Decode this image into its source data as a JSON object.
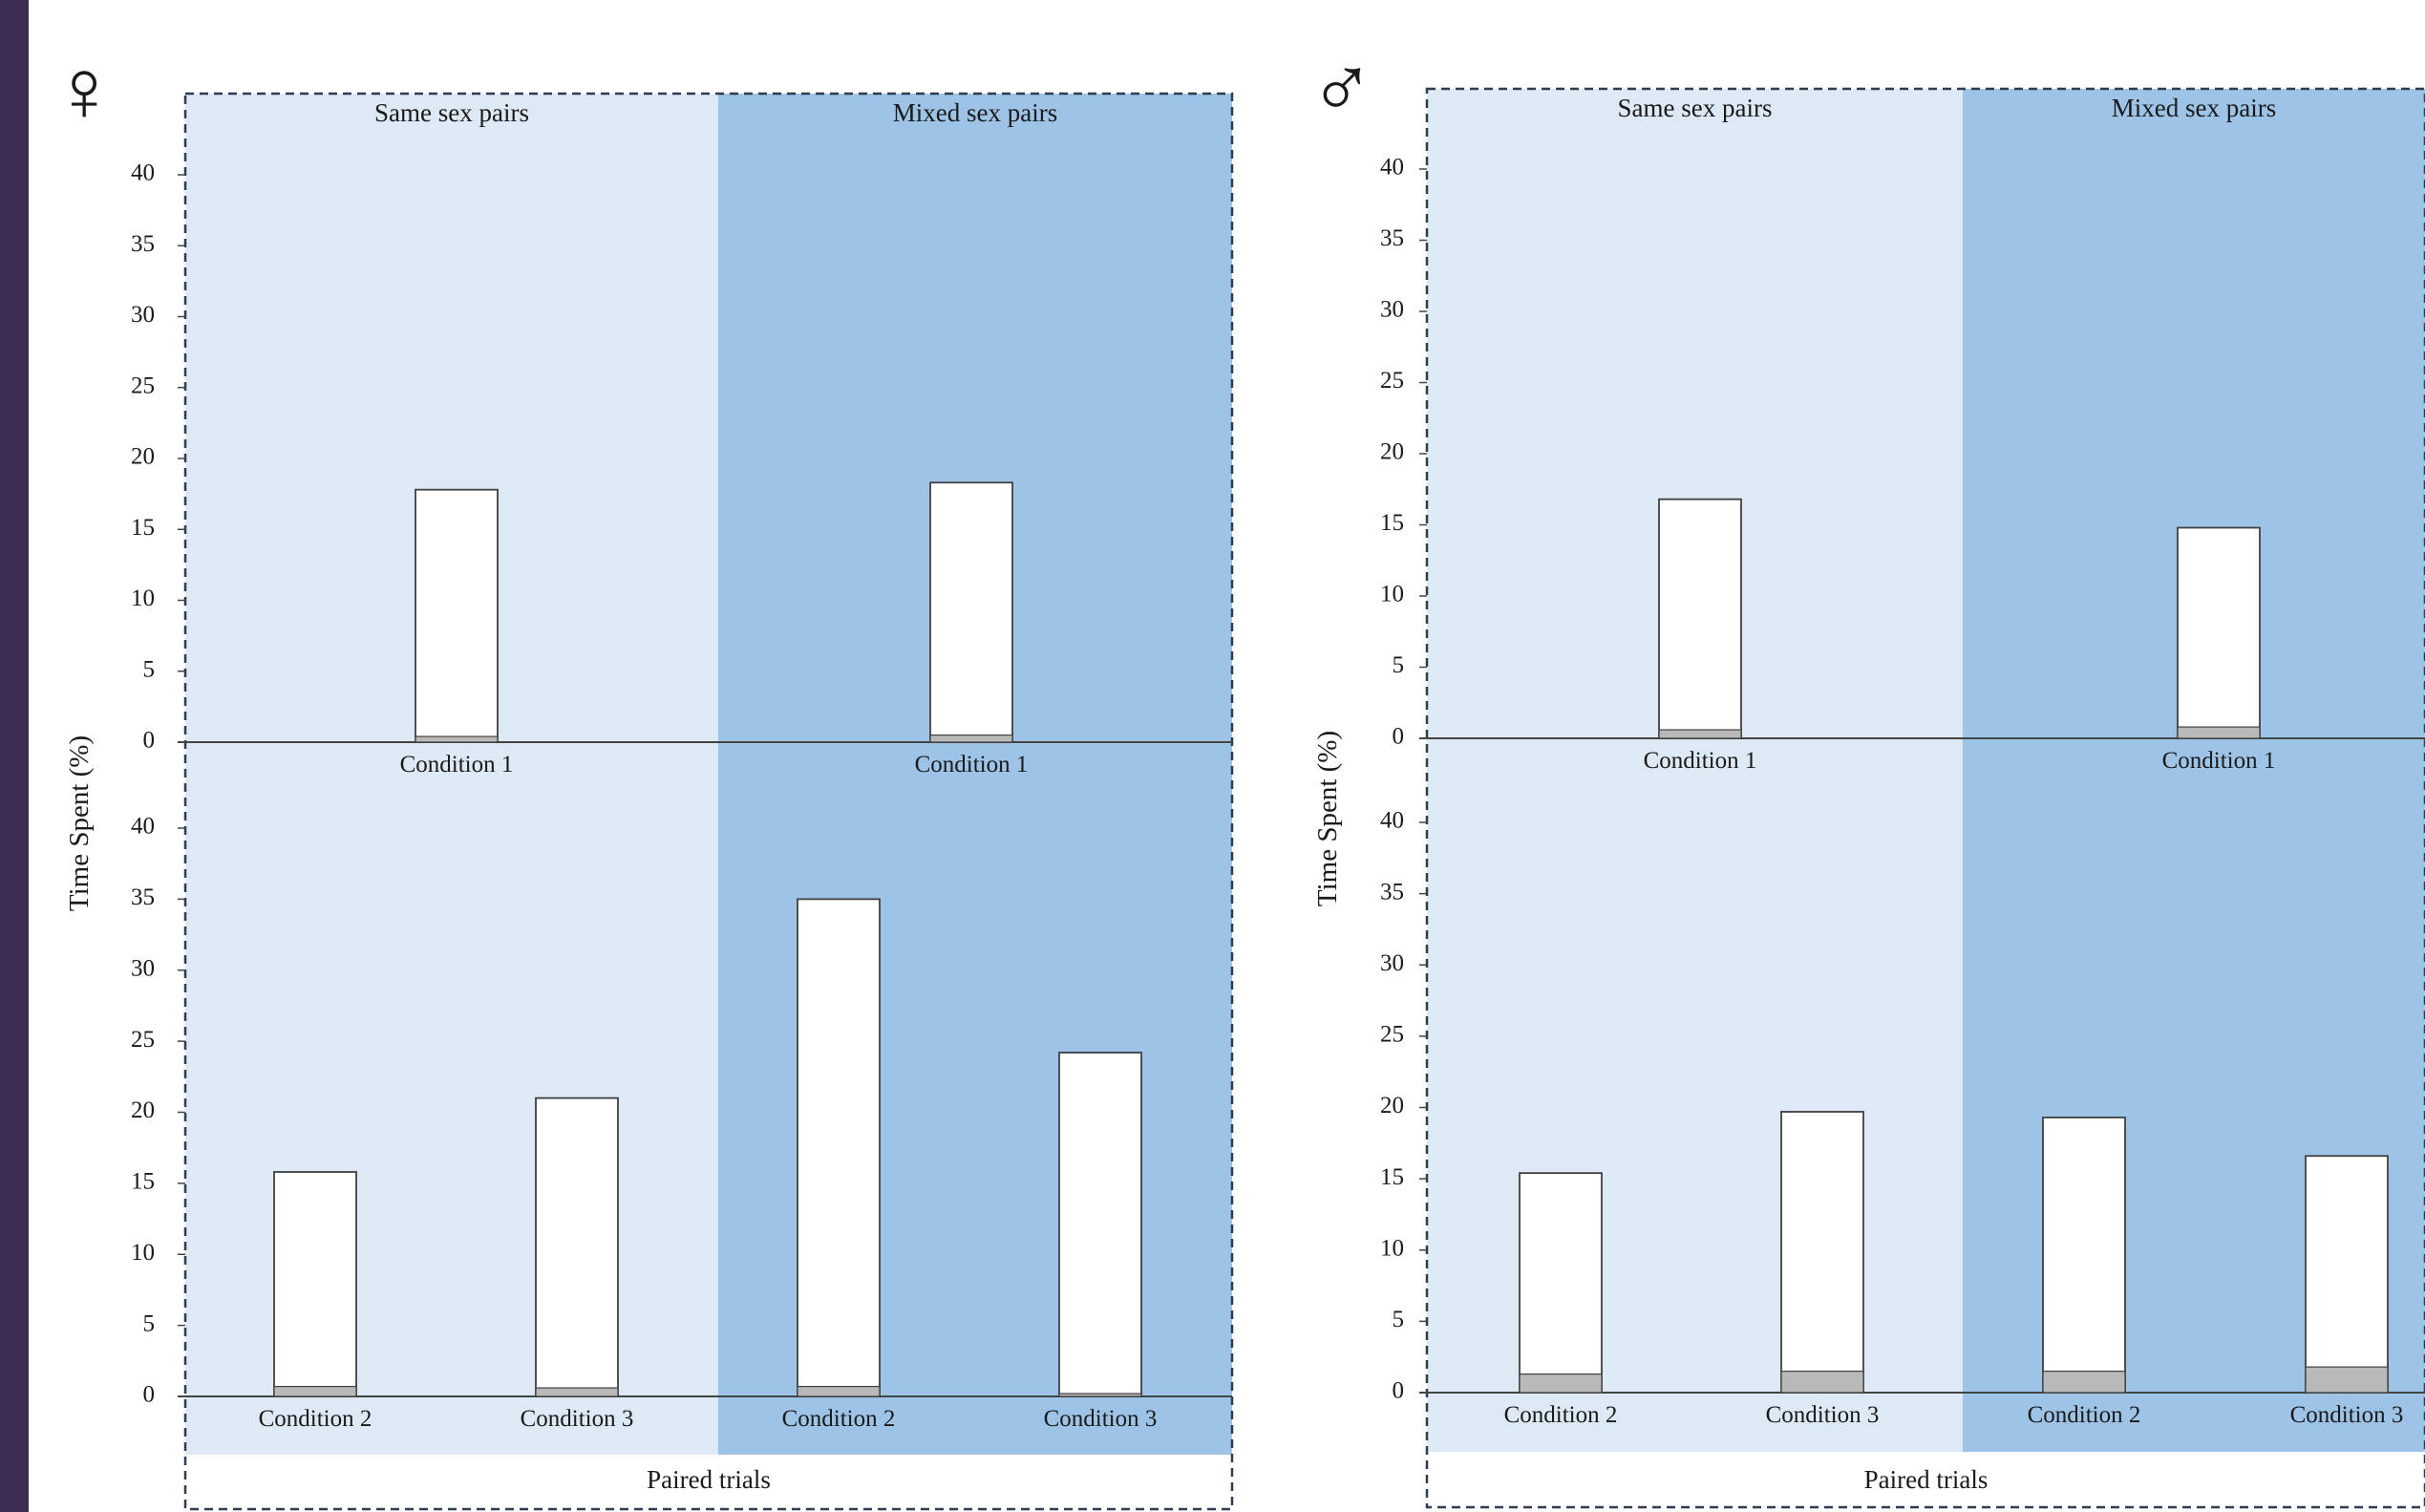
{
  "colors": {
    "left_stripe": "#3d2d55",
    "same_bg": "#dde9f5",
    "mixed_bg": "#9dc3e6",
    "frame": "#2f3b4f",
    "bar_fill": "#ffffff",
    "bar_base": "#b9b9b9",
    "bar_stroke": "#404040"
  },
  "shared_labels": {
    "y_axis": "Time Spent (%)",
    "group_same": "Same sex pairs",
    "group_mixed": "Mixed sex pairs",
    "footer": "Paired trials",
    "y_ticks": [
      "0",
      "5",
      "10",
      "15",
      "20",
      "25",
      "30",
      "35",
      "40"
    ]
  },
  "chart_data": [
    {
      "type": "bar",
      "panel_symbol": "♀",
      "symbol_icon": "female-symbol-icon",
      "ylabel": "Time Spent (%)",
      "ylim": [
        0,
        40
      ],
      "rows": [
        {
          "groups": [
            {
              "name": "Same sex pairs",
              "bars": [
                {
                  "category": "Condition 1",
                  "total": 17.8,
                  "base": 0.4
                }
              ]
            },
            {
              "name": "Mixed sex pairs",
              "bars": [
                {
                  "category": "Condition 1",
                  "total": 18.3,
                  "base": 0.5
                }
              ]
            }
          ]
        },
        {
          "groups": [
            {
              "name": "Same sex pairs",
              "bars": [
                {
                  "category": "Condition 2",
                  "total": 15.8,
                  "base": 0.7
                },
                {
                  "category": "Condition 3",
                  "total": 21.0,
                  "base": 0.6
                }
              ]
            },
            {
              "name": "Mixed sex pairs",
              "bars": [
                {
                  "category": "Condition 2",
                  "total": 35.0,
                  "base": 0.7
                },
                {
                  "category": "Condition 3",
                  "total": 24.2,
                  "base": 0.2
                }
              ]
            }
          ]
        }
      ],
      "footer": "Paired trials"
    },
    {
      "type": "bar",
      "panel_symbol": "♂",
      "symbol_icon": "male-symbol-icon",
      "ylabel": "Time Spent (%)",
      "ylim": [
        0,
        40
      ],
      "rows": [
        {
          "groups": [
            {
              "name": "Same sex pairs",
              "bars": [
                {
                  "category": "Condition 1",
                  "total": 16.8,
                  "base": 0.6
                }
              ]
            },
            {
              "name": "Mixed sex pairs",
              "bars": [
                {
                  "category": "Condition 1",
                  "total": 14.8,
                  "base": 0.8
                }
              ]
            }
          ]
        },
        {
          "groups": [
            {
              "name": "Same sex pairs",
              "bars": [
                {
                  "category": "Condition 2",
                  "total": 15.4,
                  "base": 1.3
                },
                {
                  "category": "Condition 3",
                  "total": 19.7,
                  "base": 1.5
                }
              ]
            },
            {
              "name": "Mixed sex pairs",
              "bars": [
                {
                  "category": "Condition 2",
                  "total": 19.3,
                  "base": 1.5
                },
                {
                  "category": "Condition 3",
                  "total": 16.6,
                  "base": 1.8
                }
              ]
            }
          ]
        }
      ],
      "footer": "Paired trials"
    }
  ]
}
